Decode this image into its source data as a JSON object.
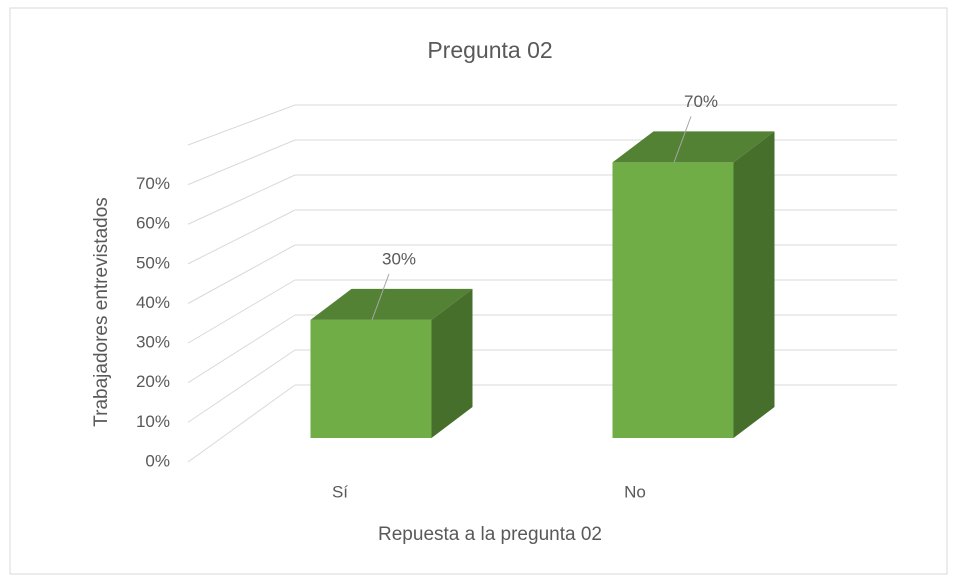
{
  "chart_data": {
    "type": "bar3d",
    "title": "Pregunta 02",
    "x_label": "Repuesta a la pregunta 02",
    "y_label": "Trabajadores entrevistados",
    "categories": [
      "Sí",
      "No"
    ],
    "values": [
      30,
      70
    ],
    "value_labels": [
      "30%",
      "70%"
    ],
    "color": "#70ad47",
    "ylim": [
      0,
      80
    ],
    "yticks": [
      {
        "value": 0,
        "label": "0%"
      },
      {
        "value": 10,
        "label": "10%"
      },
      {
        "value": 20,
        "label": "20%"
      },
      {
        "value": 30,
        "label": "30%"
      },
      {
        "value": 40,
        "label": "40%"
      },
      {
        "value": 50,
        "label": "50%"
      },
      {
        "value": 60,
        "label": "60%"
      },
      {
        "value": 70,
        "label": "70%"
      }
    ],
    "grid": true
  }
}
